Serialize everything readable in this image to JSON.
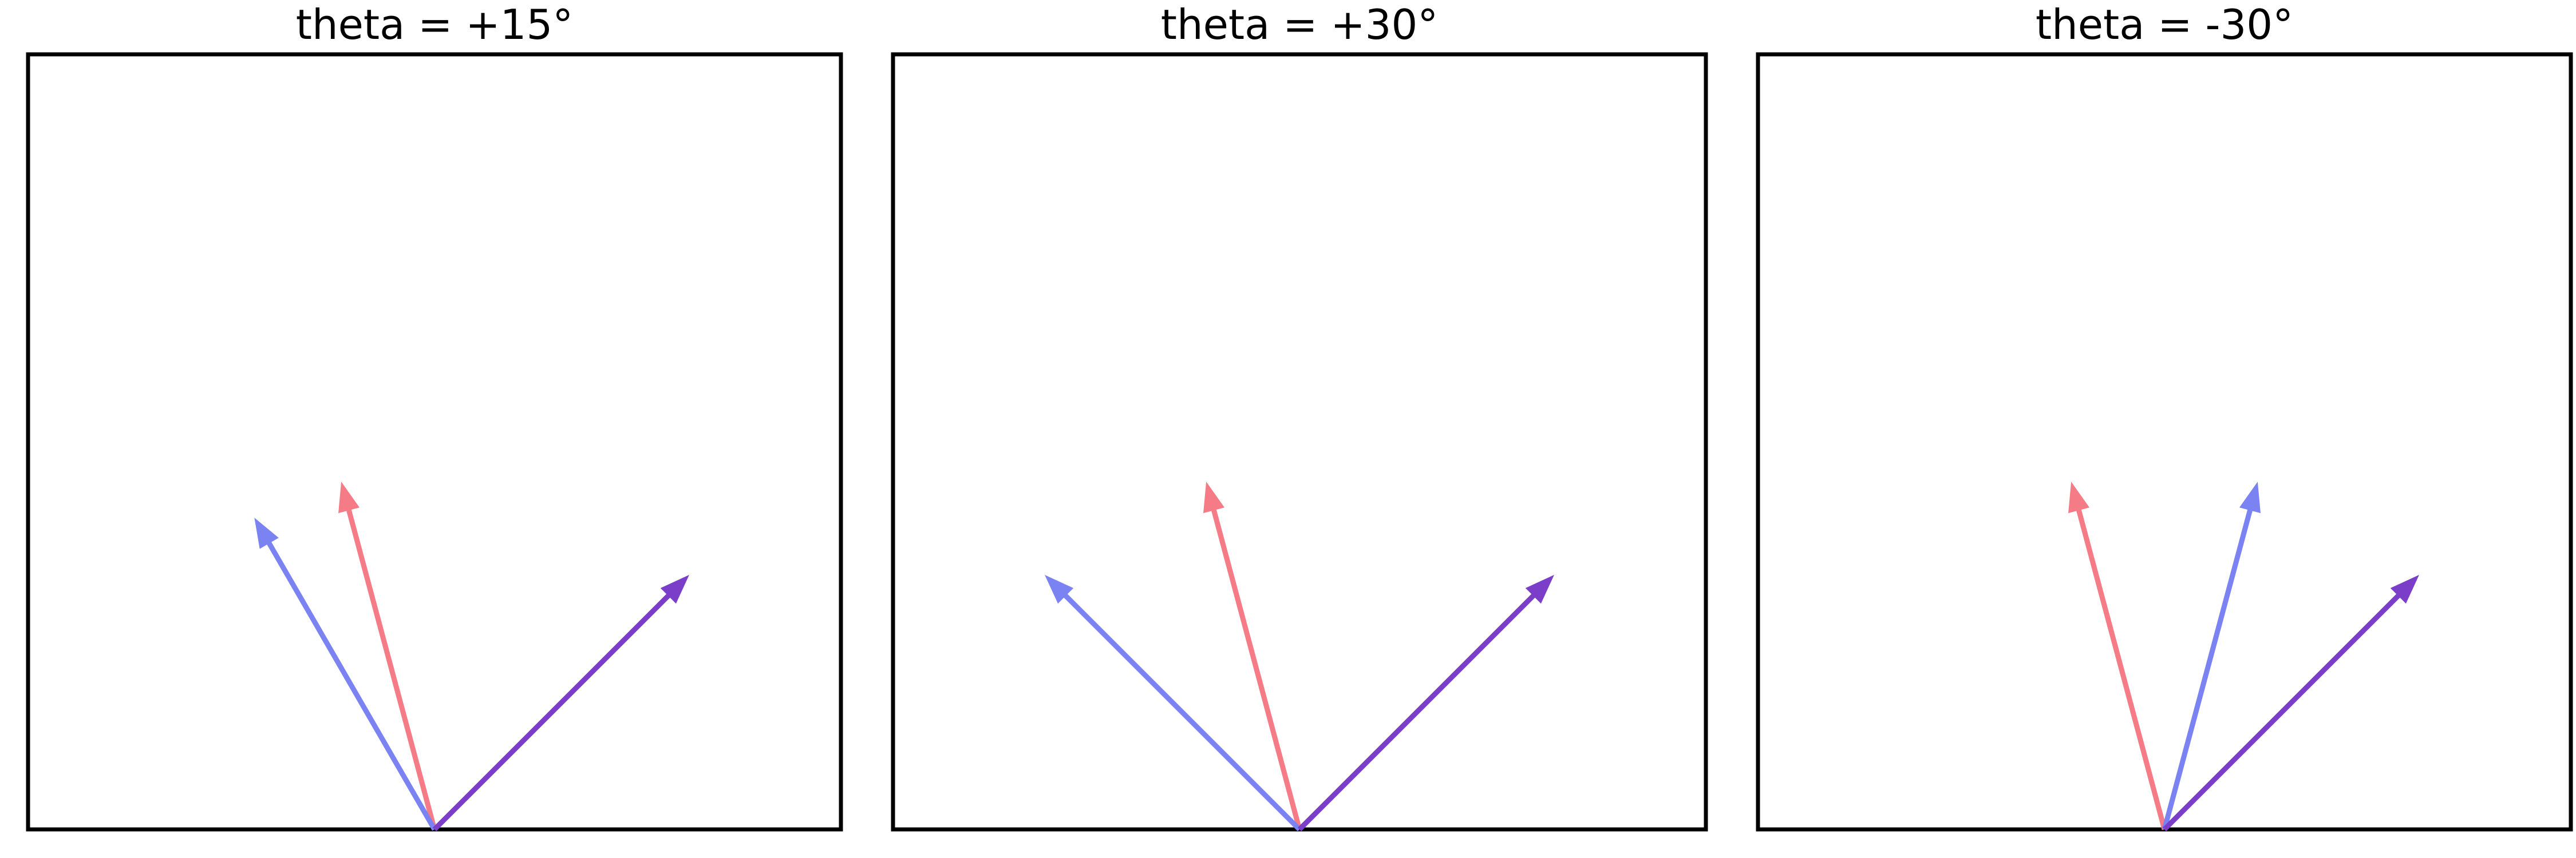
{
  "colors": {
    "red": "#f57c86",
    "blue": "#7b83f2",
    "purple": "#7a3ec8"
  },
  "panels": [
    {
      "title": "theta = +15°",
      "arrows": [
        {
          "name": "red-vector",
          "color": "red",
          "angle_deg": 105
        },
        {
          "name": "blue-vector",
          "color": "blue",
          "angle_deg": 120
        },
        {
          "name": "purple-vector",
          "color": "purple",
          "angle_deg": 45
        }
      ]
    },
    {
      "title": "theta = +30°",
      "arrows": [
        {
          "name": "red-vector",
          "color": "red",
          "angle_deg": 105
        },
        {
          "name": "blue-vector",
          "color": "blue",
          "angle_deg": 135
        },
        {
          "name": "purple-vector",
          "color": "purple",
          "angle_deg": 45
        }
      ]
    },
    {
      "title": "theta = -30°",
      "arrows": [
        {
          "name": "red-vector",
          "color": "red",
          "angle_deg": 105
        },
        {
          "name": "blue-vector",
          "color": "blue",
          "angle_deg": 75
        },
        {
          "name": "purple-vector",
          "color": "purple",
          "angle_deg": 45
        }
      ]
    }
  ]
}
